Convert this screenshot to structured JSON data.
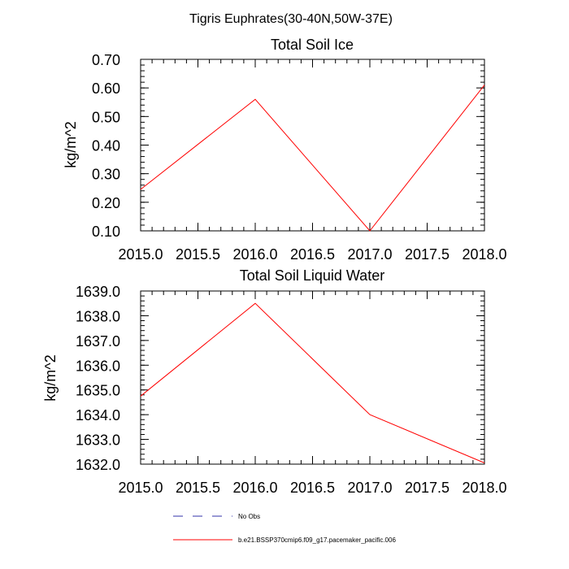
{
  "figure": {
    "title": "Tigris Euphrates(30-40N,50W-37E)"
  },
  "chart_data": [
    {
      "type": "line",
      "title": "Total Soil Ice",
      "xlabel": "",
      "ylabel": "kg/m^2",
      "xlim": [
        2015.0,
        2018.0
      ],
      "ylim": [
        0.1,
        0.7
      ],
      "x_ticks": [
        "2015.0",
        "2015.5",
        "2016.0",
        "2016.5",
        "2017.0",
        "2017.5",
        "2018.0"
      ],
      "y_ticks": [
        "0.10",
        "0.20",
        "0.30",
        "0.40",
        "0.50",
        "0.60",
        "0.70"
      ],
      "grid": false,
      "series": [
        {
          "name": "b.e21.BSSP370cmip6.f09_g17.pacemaker_pacific.006",
          "color": "#ff0000",
          "x": [
            2015,
            2016,
            2017,
            2018
          ],
          "values": [
            0.245,
            0.56,
            0.1,
            0.61
          ]
        }
      ]
    },
    {
      "type": "line",
      "title": "Total Soil Liquid Water",
      "xlabel": "",
      "ylabel": "kg/m^2",
      "xlim": [
        2015.0,
        2018.0
      ],
      "ylim": [
        1632.0,
        1639.0
      ],
      "x_ticks": [
        "2015.0",
        "2015.5",
        "2016.0",
        "2016.5",
        "2017.0",
        "2017.5",
        "2018.0"
      ],
      "y_ticks": [
        "1632.0",
        "1633.0",
        "1634.0",
        "1635.0",
        "1636.0",
        "1637.0",
        "1638.0",
        "1639.0"
      ],
      "grid": false,
      "series": [
        {
          "name": "b.e21.BSSP370cmip6.f09_g17.pacemaker_pacific.006",
          "color": "#ff0000",
          "x": [
            2015,
            2016,
            2017,
            2018
          ],
          "values": [
            1634.75,
            1638.5,
            1634.0,
            1632.05
          ]
        }
      ]
    }
  ],
  "legend": {
    "placement": "bottom",
    "entries": [
      {
        "label": "No Obs",
        "color": "#3333aa",
        "style": "dashed"
      },
      {
        "label": "b.e21.BSSP370cmip6.f09_g17.pacemaker_pacific.006",
        "color": "#ff0000",
        "style": "solid"
      }
    ]
  }
}
